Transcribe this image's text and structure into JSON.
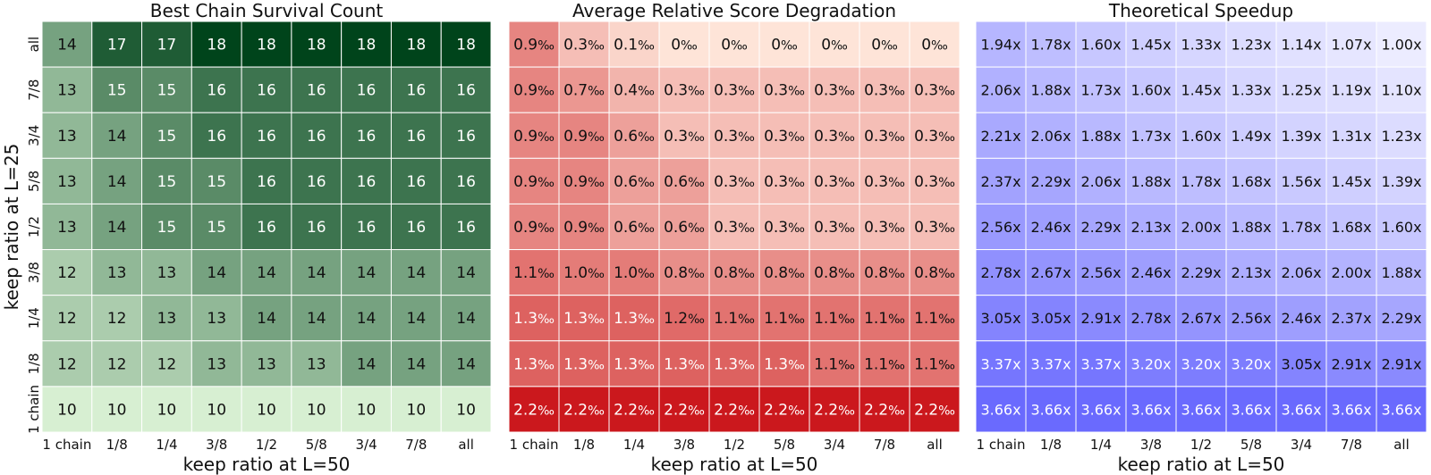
{
  "chart_data": [
    {
      "type": "heatmap",
      "title": "Best Chain Survival Count",
      "xlabel": "keep ratio at L=50",
      "ylabel": "keep ratio at L=25",
      "x_categories": [
        "1 chain",
        "1/8",
        "1/4",
        "3/8",
        "1/2",
        "5/8",
        "3/4",
        "7/8",
        "all"
      ],
      "y_categories": [
        "all",
        "7/8",
        "3/4",
        "5/8",
        "1/2",
        "3/8",
        "1/4",
        "1/8",
        "1 chain"
      ],
      "value_suffix": "",
      "colormap": "Greens",
      "color_low": "#d7efd2",
      "color_high": "#00441b",
      "vmin": 10,
      "vmax": 18,
      "values": [
        [
          14,
          17,
          17,
          18,
          18,
          18,
          18,
          18,
          18
        ],
        [
          13,
          15,
          15,
          16,
          16,
          16,
          16,
          16,
          16
        ],
        [
          13,
          14,
          15,
          16,
          16,
          16,
          16,
          16,
          16
        ],
        [
          13,
          14,
          15,
          15,
          16,
          16,
          16,
          16,
          16
        ],
        [
          13,
          14,
          15,
          15,
          16,
          16,
          16,
          16,
          16
        ],
        [
          12,
          13,
          13,
          14,
          14,
          14,
          14,
          14,
          14
        ],
        [
          12,
          12,
          13,
          13,
          14,
          14,
          14,
          14,
          14
        ],
        [
          12,
          12,
          12,
          13,
          13,
          13,
          14,
          14,
          14
        ],
        [
          10,
          10,
          10,
          10,
          10,
          10,
          10,
          10,
          10
        ]
      ]
    },
    {
      "type": "heatmap",
      "title": "Average Relative Score Degradation",
      "xlabel": "keep ratio at L=50",
      "ylabel": "",
      "x_categories": [
        "1 chain",
        "1/8",
        "1/4",
        "3/8",
        "1/2",
        "5/8",
        "3/4",
        "7/8",
        "all"
      ],
      "y_categories": [
        "all",
        "7/8",
        "3/4",
        "5/8",
        "1/2",
        "3/8",
        "1/4",
        "1/8",
        "1 chain"
      ],
      "value_suffix": "‰",
      "colormap": "Reds",
      "color_low": "#fee4d8",
      "color_high": "#cb181d",
      "vmin": 0,
      "vmax": 2.2,
      "values": [
        [
          "0.9",
          "0.3",
          "0.1",
          "0",
          "0",
          "0",
          "0",
          "0",
          "0"
        ],
        [
          "0.9",
          "0.7",
          "0.4",
          "0.3",
          "0.3",
          "0.3",
          "0.3",
          "0.3",
          "0.3"
        ],
        [
          "0.9",
          "0.9",
          "0.6",
          "0.3",
          "0.3",
          "0.3",
          "0.3",
          "0.3",
          "0.3"
        ],
        [
          "0.9",
          "0.9",
          "0.6",
          "0.6",
          "0.3",
          "0.3",
          "0.3",
          "0.3",
          "0.3"
        ],
        [
          "0.9",
          "0.9",
          "0.6",
          "0.6",
          "0.3",
          "0.3",
          "0.3",
          "0.3",
          "0.3"
        ],
        [
          "1.1",
          "1.0",
          "1.0",
          "0.8",
          "0.8",
          "0.8",
          "0.8",
          "0.8",
          "0.8"
        ],
        [
          "1.3",
          "1.3",
          "1.3",
          "1.2",
          "1.1",
          "1.1",
          "1.1",
          "1.1",
          "1.1"
        ],
        [
          "1.3",
          "1.3",
          "1.3",
          "1.3",
          "1.3",
          "1.3",
          "1.1",
          "1.1",
          "1.1"
        ],
        [
          "2.2",
          "2.2",
          "2.2",
          "2.2",
          "2.2",
          "2.2",
          "2.2",
          "2.2",
          "2.2"
        ]
      ]
    },
    {
      "type": "heatmap",
      "title": "Theoretical Speedup",
      "xlabel": "keep ratio at L=50",
      "ylabel": "",
      "x_categories": [
        "1 chain",
        "1/8",
        "1/4",
        "3/8",
        "1/2",
        "5/8",
        "3/4",
        "7/8",
        "all"
      ],
      "y_categories": [
        "all",
        "7/8",
        "3/4",
        "5/8",
        "1/2",
        "3/8",
        "1/4",
        "1/8",
        "1 chain"
      ],
      "value_suffix": "x",
      "colormap": "bwr",
      "color_low": "#ececff",
      "color_high": "#6a6afe",
      "vmin": 1.0,
      "vmax": 3.66,
      "values": [
        [
          "1.94",
          "1.78",
          "1.60",
          "1.45",
          "1.33",
          "1.23",
          "1.14",
          "1.07",
          "1.00"
        ],
        [
          "2.06",
          "1.88",
          "1.73",
          "1.60",
          "1.45",
          "1.33",
          "1.25",
          "1.19",
          "1.10"
        ],
        [
          "2.21",
          "2.06",
          "1.88",
          "1.73",
          "1.60",
          "1.49",
          "1.39",
          "1.31",
          "1.23"
        ],
        [
          "2.37",
          "2.29",
          "2.06",
          "1.88",
          "1.78",
          "1.68",
          "1.56",
          "1.45",
          "1.39"
        ],
        [
          "2.56",
          "2.46",
          "2.29",
          "2.13",
          "2.00",
          "1.88",
          "1.78",
          "1.68",
          "1.60"
        ],
        [
          "2.78",
          "2.67",
          "2.56",
          "2.46",
          "2.29",
          "2.13",
          "2.06",
          "2.00",
          "1.88"
        ],
        [
          "3.05",
          "3.05",
          "2.91",
          "2.78",
          "2.67",
          "2.56",
          "2.46",
          "2.37",
          "2.29"
        ],
        [
          "3.37",
          "3.37",
          "3.37",
          "3.20",
          "3.20",
          "3.20",
          "3.05",
          "2.91",
          "2.91"
        ],
        [
          "3.66",
          "3.66",
          "3.66",
          "3.66",
          "3.66",
          "3.66",
          "3.66",
          "3.66",
          "3.66"
        ]
      ]
    }
  ]
}
